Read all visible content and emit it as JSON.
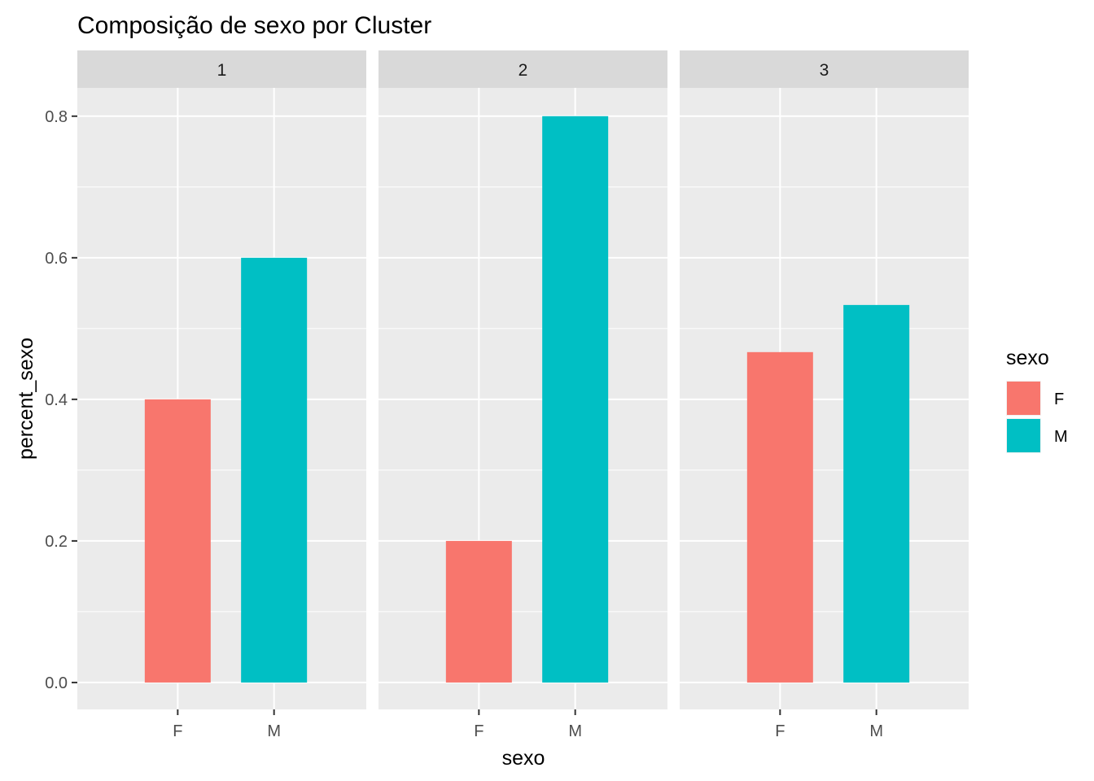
{
  "chart_data": {
    "type": "bar",
    "title": "Composição de sexo por Cluster",
    "xlabel": "sexo",
    "ylabel": "percent_sexo",
    "ylim": [
      -0.038,
      0.84
    ],
    "yticks": [
      0.0,
      0.2,
      0.4,
      0.6,
      0.8
    ],
    "ytick_labels": [
      "0.0",
      "0.2",
      "0.4",
      "0.6",
      "0.8"
    ],
    "categories": [
      "F",
      "M"
    ],
    "facets": [
      {
        "label": "1",
        "values": [
          0.4,
          0.6
        ]
      },
      {
        "label": "2",
        "values": [
          0.2,
          0.8
        ]
      },
      {
        "label": "3",
        "values": [
          0.4667,
          0.5333
        ]
      }
    ],
    "legend": {
      "title": "sexo",
      "placement": "right",
      "entries": [
        {
          "label": "F",
          "color": "#F8766D"
        },
        {
          "label": "M",
          "color": "#00BFC4"
        }
      ]
    },
    "grid": true,
    "colors": {
      "panel_bg": "#EBEBEB",
      "strip_bg": "#D9D9D9",
      "grid_major": "#FFFFFF",
      "F": "#F8766D",
      "M": "#00BFC4"
    }
  }
}
